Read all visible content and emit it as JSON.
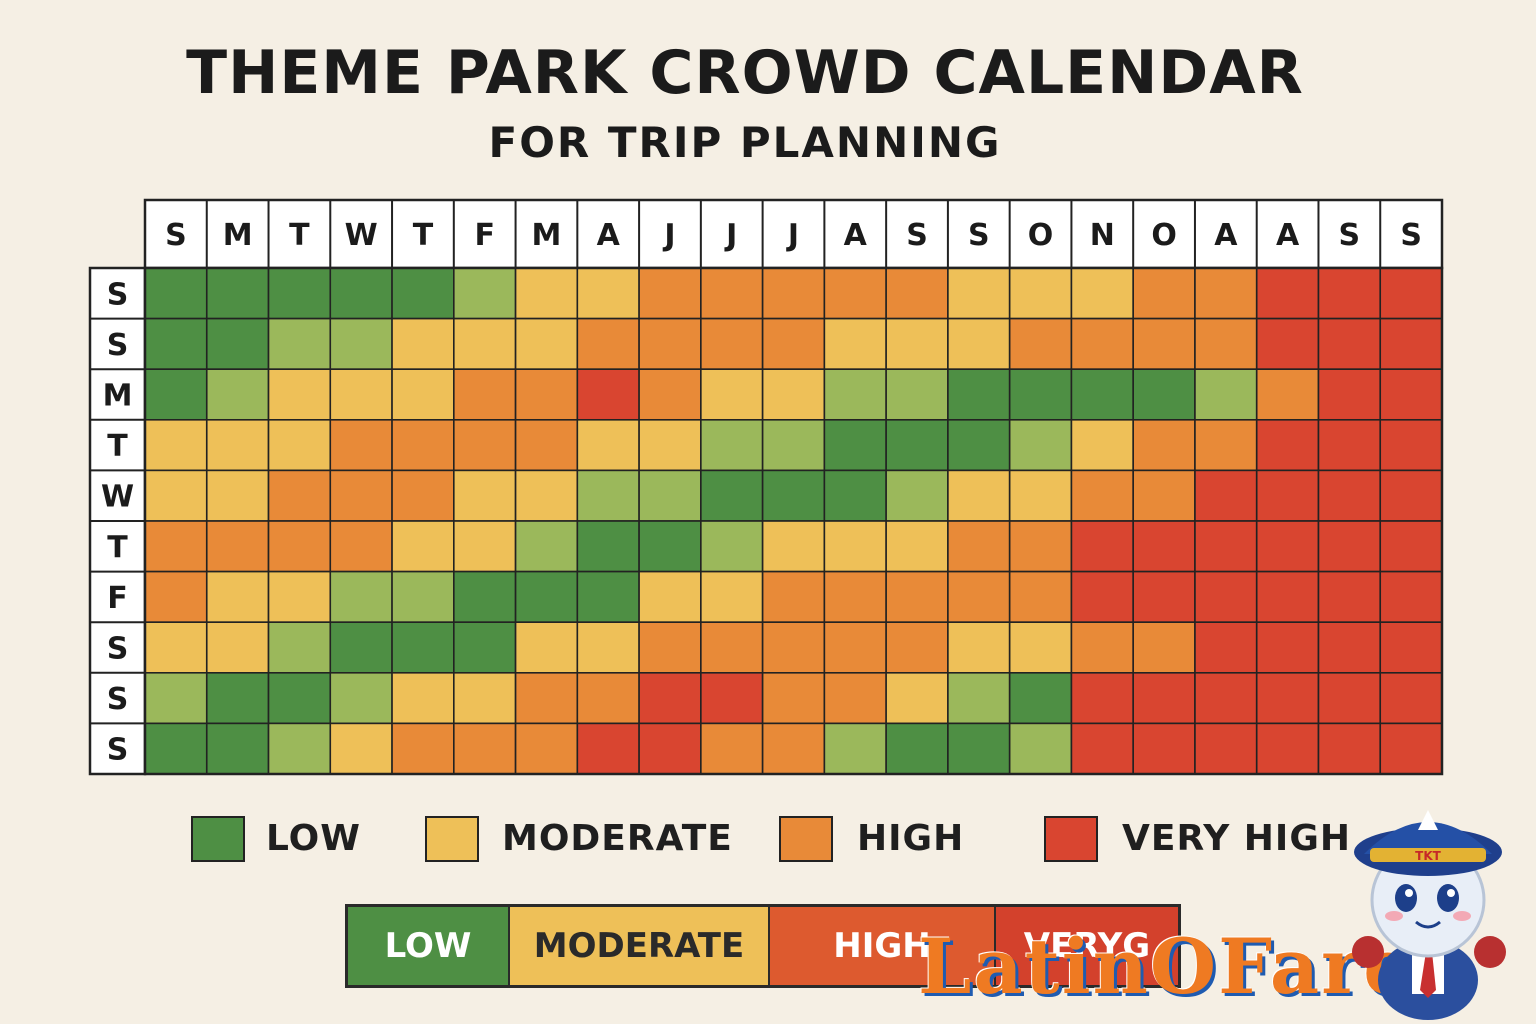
{
  "title": "THEME PARK CROWD CALENDAR",
  "subtitle": "FOR TRIP PLANNING",
  "colors": {
    "low": "#4e8f44",
    "low_moderate": "#9bb85b",
    "moderate": "#eec058",
    "high": "#e88a38",
    "very_high": "#d94530",
    "grid": "#222222",
    "header_bg": "#ffffff"
  },
  "legend": [
    {
      "label": "LOW",
      "color": "#4e8f44"
    },
    {
      "label": "MODERATE",
      "color": "#eec058"
    },
    {
      "label": "HIGH",
      "color": "#e88a38"
    },
    {
      "label": "VERY HIGH",
      "color": "#d94530"
    }
  ],
  "scale_bar": [
    {
      "label": "LOW",
      "color": "#4e8f44",
      "text_color": "#ffffff"
    },
    {
      "label": "MODERATE",
      "color": "#eec058",
      "text_color": "#2a2a2a"
    },
    {
      "label": "HIGH",
      "color": "#dd5a2f",
      "text_color": "#ffffff"
    },
    {
      "label": "VERYG",
      "color": "#d3412c",
      "text_color": "#ffffff"
    }
  ],
  "watermark": "LatinOFare",
  "mascot": {
    "icon": "pilot-mascot-icon",
    "cap_text": "TKT"
  },
  "chart_data": {
    "type": "heatmap",
    "title": "THEME PARK CROWD CALENDAR",
    "subtitle": "FOR TRIP PLANNING",
    "columns": [
      "S",
      "M",
      "T",
      "W",
      "T",
      "F",
      "M",
      "A",
      "J",
      "J",
      "J",
      "A",
      "S",
      "S",
      "O",
      "N",
      "O",
      "A",
      "A",
      "S",
      "S"
    ],
    "rows": [
      "S",
      "S",
      "M",
      "T",
      "W",
      "T",
      "F",
      "S",
      "S",
      "S"
    ],
    "scale": {
      "0": "low",
      "1": "low_moderate",
      "2": "moderate",
      "3": "high",
      "4": "very_high"
    },
    "values": [
      [
        0,
        0,
        0,
        0,
        0,
        1,
        2,
        2,
        3,
        3,
        3,
        3,
        3,
        2,
        2,
        2,
        3,
        3,
        4,
        4,
        4
      ],
      [
        0,
        0,
        1,
        1,
        2,
        2,
        2,
        3,
        3,
        3,
        3,
        2,
        2,
        2,
        3,
        3,
        3,
        3,
        4,
        4,
        4
      ],
      [
        0,
        1,
        2,
        2,
        2,
        3,
        3,
        4,
        3,
        2,
        2,
        1,
        1,
        0,
        0,
        0,
        0,
        1,
        3,
        4,
        4
      ],
      [
        2,
        2,
        2,
        3,
        3,
        3,
        3,
        2,
        2,
        1,
        1,
        0,
        0,
        0,
        1,
        2,
        3,
        3,
        4,
        4,
        4
      ],
      [
        2,
        2,
        3,
        3,
        3,
        2,
        2,
        1,
        1,
        0,
        0,
        0,
        1,
        2,
        2,
        3,
        3,
        4,
        4,
        4,
        4
      ],
      [
        3,
        3,
        3,
        3,
        2,
        2,
        1,
        0,
        0,
        1,
        2,
        2,
        2,
        3,
        3,
        4,
        4,
        4,
        4,
        4,
        4
      ],
      [
        3,
        2,
        2,
        1,
        1,
        0,
        0,
        0,
        2,
        2,
        3,
        3,
        3,
        3,
        3,
        4,
        4,
        4,
        4,
        4,
        4
      ],
      [
        2,
        2,
        1,
        0,
        0,
        0,
        2,
        2,
        3,
        3,
        3,
        3,
        3,
        2,
        2,
        3,
        3,
        4,
        4,
        4,
        4
      ],
      [
        1,
        0,
        0,
        1,
        2,
        2,
        3,
        3,
        4,
        4,
        3,
        3,
        2,
        1,
        0,
        4,
        4,
        4,
        4,
        4,
        4
      ],
      [
        0,
        0,
        1,
        2,
        3,
        3,
        3,
        4,
        4,
        3,
        3,
        1,
        0,
        0,
        1,
        4,
        4,
        4,
        4,
        4,
        4
      ]
    ]
  }
}
